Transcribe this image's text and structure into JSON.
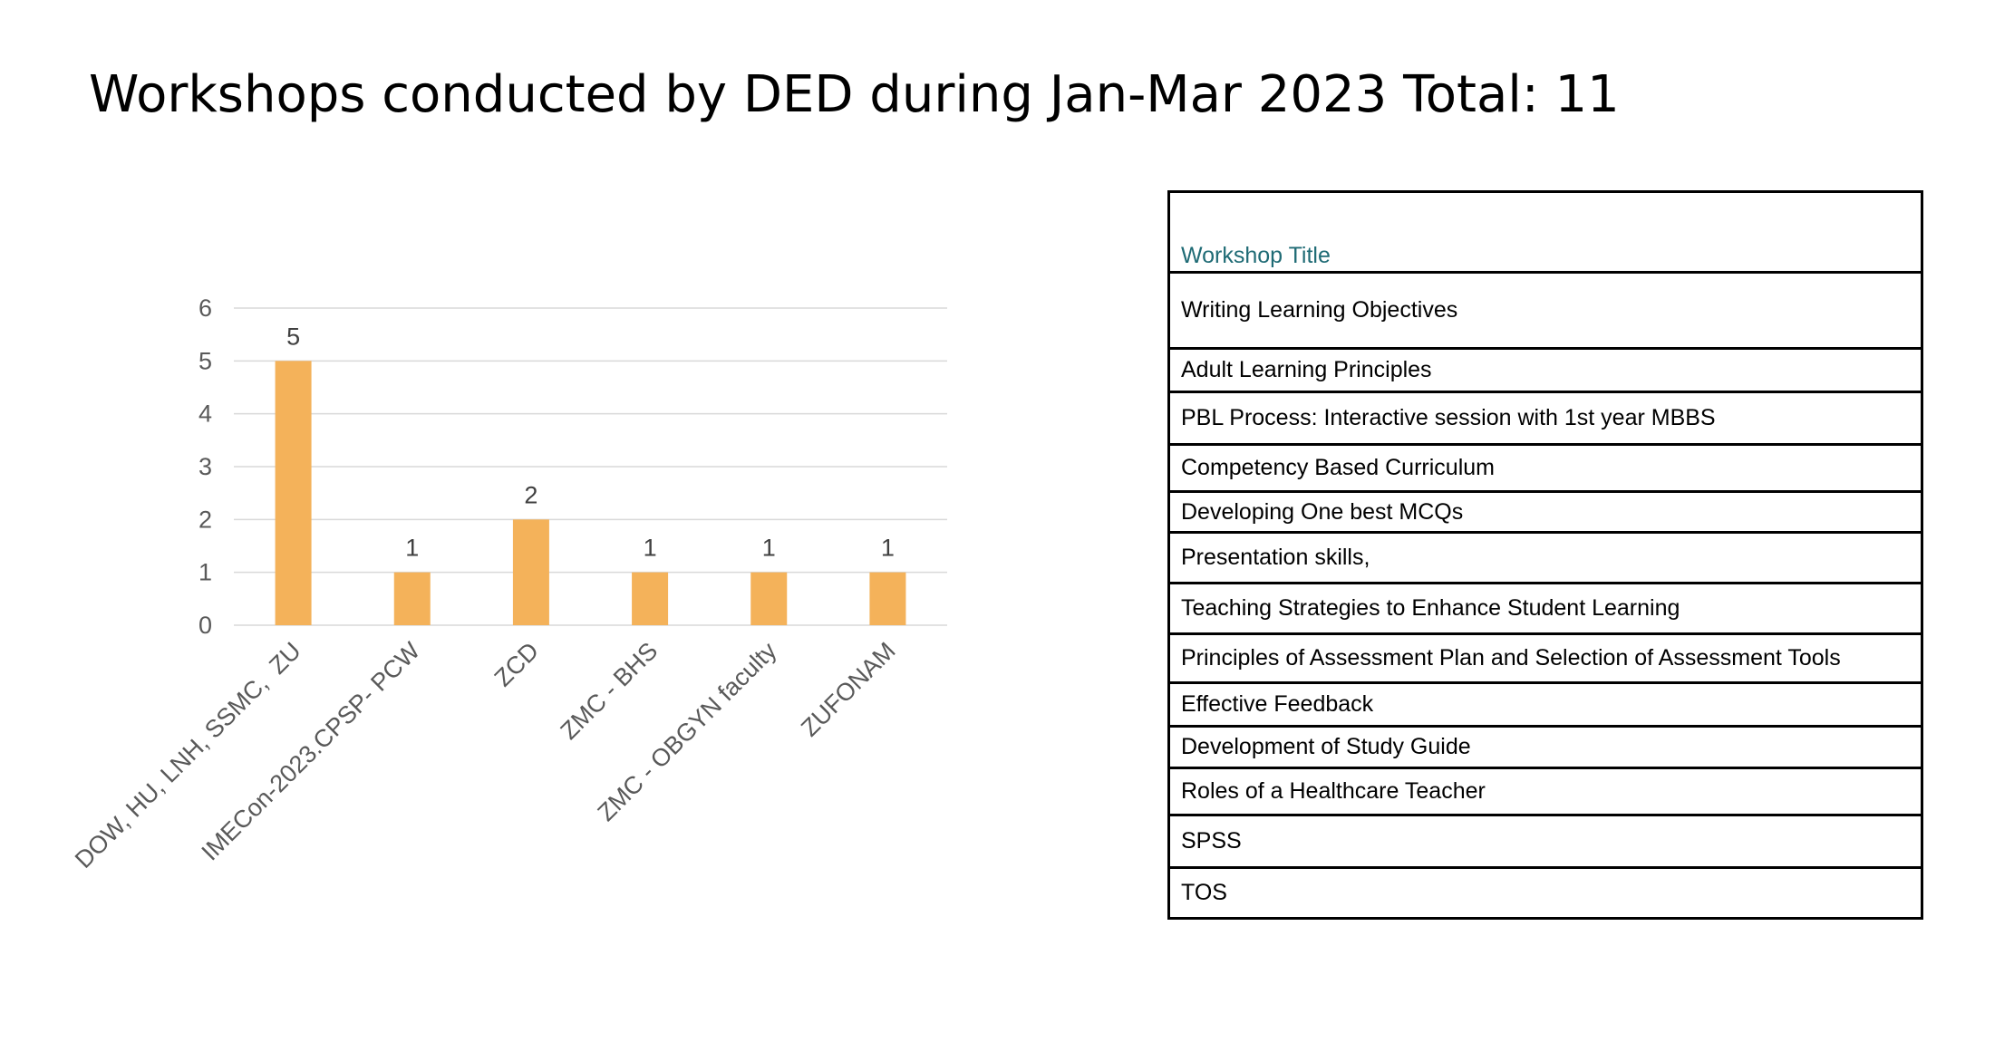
{
  "title": "Workshops conducted by DED during Jan-Mar 2023 Total: 11",
  "colors": {
    "bar": "#f4b25a",
    "grid": "#d9d9d9",
    "axis_text": "#595959",
    "table_header": "#1f6b75"
  },
  "chart_data": {
    "type": "bar",
    "categories": [
      "DOW, HU, LNH, SSMC,  ZU",
      "IMECon-2023.CPSP- PCW",
      "ZCD",
      "ZMC - BHS",
      "ZMC - OBGYN faculty",
      "ZUFONAM"
    ],
    "values": [
      5,
      1,
      2,
      1,
      1,
      1
    ],
    "data_labels": [
      "5",
      "1",
      "2",
      "1",
      "1",
      "1"
    ],
    "ylim": [
      0,
      6
    ],
    "yticks": [
      0,
      1,
      2,
      3,
      4,
      5,
      6
    ],
    "grid": true,
    "legend": false,
    "xlabel": "",
    "ylabel": ""
  },
  "table": {
    "header": "Workshop Title",
    "rows": [
      "Writing Learning Objectives",
      "Adult Learning Principles",
      "PBL Process: Interactive session with 1st year MBBS",
      "Competency Based Curriculum",
      "Developing One best MCQs",
      "Presentation skills,",
      "Teaching Strategies to Enhance Student Learning",
      "Principles of Assessment Plan and Selection of Assessment Tools",
      "Effective Feedback",
      "Development of   Study Guide",
      "Roles of a Healthcare Teacher",
      "SPSS",
      "TOS"
    ]
  }
}
